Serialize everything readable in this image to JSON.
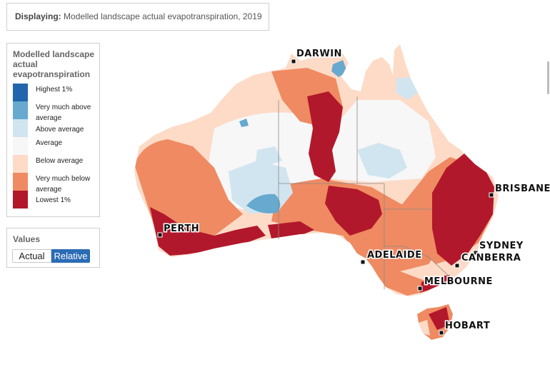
{
  "display": {
    "label": "Displaying:",
    "value": "Modelled landscape actual evapotranspiration, 2019"
  },
  "legend": {
    "title": "Modelled landscape actual evapotranspiration",
    "items": [
      {
        "label": "Highest 1%",
        "color": "#2166ac"
      },
      {
        "label": "Very much above average",
        "color": "#67a9cf"
      },
      {
        "label": "Above average",
        "color": "#d1e5f0"
      },
      {
        "label": "Average",
        "color": "#f7f7f7"
      },
      {
        "label": "Below average",
        "color": "#fddbc7"
      },
      {
        "label": "Very much below average",
        "color": "#ef8a62"
      },
      {
        "label": "Lowest 1%",
        "color": "#b2182b"
      }
    ]
  },
  "values": {
    "title": "Values",
    "options": [
      "Actual",
      "Relative"
    ],
    "selected": "Relative"
  },
  "map": {
    "cities": {
      "darwin": "DARWIN",
      "brisbane": "BRISBANE",
      "perth": "PERTH",
      "sydney": "SYDNEY",
      "canberra": "CANBERRA",
      "adelaide": "ADELAIDE",
      "melbourne": "MELBOURNE",
      "hobart": "HOBART"
    }
  }
}
